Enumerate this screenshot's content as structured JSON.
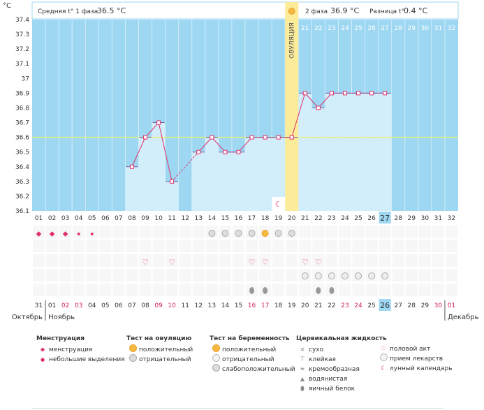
{
  "chart_data": {
    "type": "line",
    "ylabel": "°C",
    "ylim": [
      36.1,
      37.4
    ],
    "yticks": [
      "37.4",
      "37.3",
      "37.2",
      "37.1",
      "37",
      "36.9",
      "36.8",
      "36.7",
      "36.6",
      "36.5",
      "36.4",
      "36.3",
      "36.2",
      "36.1"
    ],
    "cycle_days": [
      "01",
      "02",
      "03",
      "04",
      "05",
      "06",
      "07",
      "08",
      "09",
      "10",
      "11",
      "12",
      "13",
      "14",
      "15",
      "16",
      "17",
      "18",
      "19",
      "20",
      "21",
      "22",
      "23",
      "24",
      "25",
      "26",
      "27",
      "28",
      "29",
      "30",
      "31",
      "32"
    ],
    "date_days": [
      "31",
      "01",
      "02",
      "03",
      "04",
      "05",
      "06",
      "07",
      "08",
      "09",
      "10",
      "11",
      "12",
      "13",
      "14",
      "15",
      "16",
      "17",
      "18",
      "19",
      "20",
      "21",
      "22",
      "23",
      "24",
      "25",
      "26",
      "27",
      "28",
      "29",
      "30",
      "01"
    ],
    "highlight_cycle_day": "27",
    "highlight_date_day": "26",
    "red_date_indices": [
      2,
      3,
      9,
      10,
      16,
      17,
      23,
      24,
      30,
      31
    ],
    "temperatures": [
      {
        "day": 8,
        "value": 36.4
      },
      {
        "day": 9,
        "value": 36.6
      },
      {
        "day": 10,
        "value": 36.7
      },
      {
        "day": 11,
        "value": 36.3
      },
      {
        "day": 13,
        "value": 36.5
      },
      {
        "day": 14,
        "value": 36.6
      },
      {
        "day": 15,
        "value": 36.5
      },
      {
        "day": 16,
        "value": 36.5
      },
      {
        "day": 17,
        "value": 36.6
      },
      {
        "day": 18,
        "value": 36.6
      },
      {
        "day": 19,
        "value": 36.6
      },
      {
        "day": 20,
        "value": 36.6
      },
      {
        "day": 21,
        "value": 36.9
      },
      {
        "day": 22,
        "value": 36.8
      },
      {
        "day": 23,
        "value": 36.9
      },
      {
        "day": 24,
        "value": 36.9
      },
      {
        "day": 25,
        "value": 36.9
      },
      {
        "day": 26,
        "value": 36.9
      },
      {
        "day": 27,
        "value": 36.9
      }
    ],
    "coverline": 36.6,
    "ovulation_day": 20,
    "ovulation_label": "ОВУЛЯЦИЯ",
    "phase1_label": "Средняя t° 1 фаза",
    "phase1_value": "36.5 °C",
    "phase2_label": "2 фаза",
    "phase2_value": "36.9 °C",
    "diff_label": "Разница t°",
    "diff_value": "0.4 °C",
    "months": {
      "left": "Октябрь",
      "mid": "Ноябрь",
      "right": "Декабрь"
    },
    "menstruation": {
      "big": [
        1,
        2,
        3
      ],
      "small": [
        4,
        5
      ]
    },
    "ovulation_tests": {
      "negative": [
        14,
        15,
        16,
        17,
        19,
        20
      ],
      "positive": [
        18
      ]
    },
    "intercourse": [
      9,
      11,
      17,
      18,
      21,
      22
    ],
    "pregnancy_tests": [
      21,
      22,
      23,
      24,
      25,
      26,
      27
    ],
    "fluid_drops": [
      17,
      18,
      22,
      23
    ],
    "lunar_day": 19,
    "colors": {
      "sky": "#9dd7f1",
      "bar": "#d3eefb",
      "line": "#e0306a",
      "ovulation": "#fcec9a",
      "cover": "#e6ef7c"
    }
  },
  "legend": {
    "menstruation": {
      "title": "Менструация",
      "items": [
        "менструация",
        "небольшие выделения"
      ]
    },
    "ovulation_test": {
      "title": "Тест на овуляцию",
      "items": [
        "положительный",
        "отрицательный"
      ]
    },
    "pregnancy_test": {
      "title": "Тест на беременность",
      "items": [
        "положительный",
        "отрицательный",
        "слабоположительный"
      ]
    },
    "cervical_fluid": {
      "title": "Цервикальная жидкость",
      "items": [
        "сухо",
        "клейкая",
        "кремообразная",
        "водянистая",
        "яичный белок"
      ]
    },
    "other": {
      "items": [
        "половой акт",
        "прием лекарств",
        "лунный календарь"
      ]
    }
  }
}
